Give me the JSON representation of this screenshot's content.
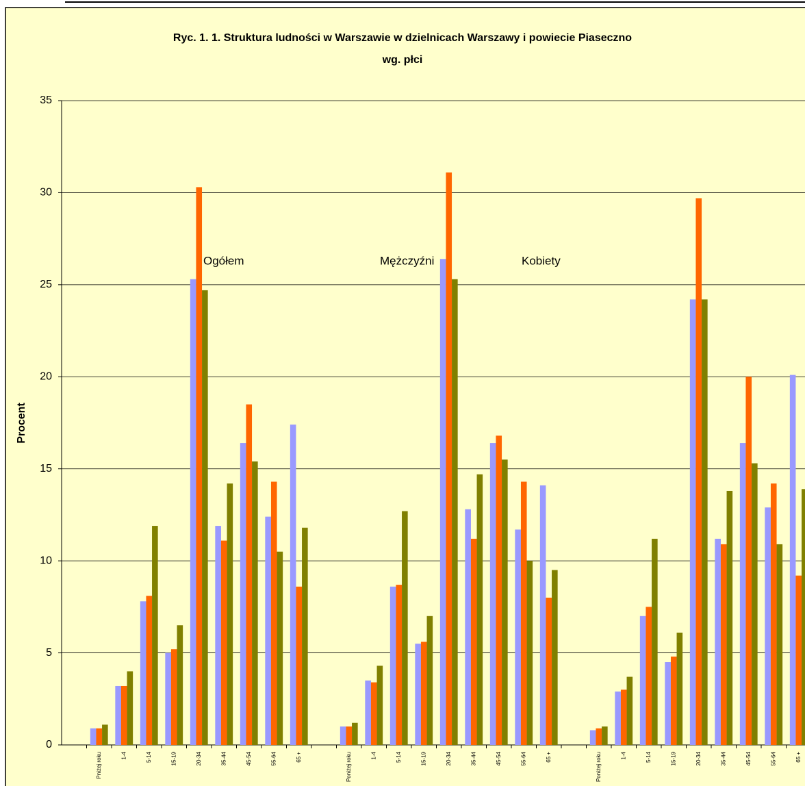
{
  "chart_data": {
    "type": "bar",
    "title": [
      "Ryc. 1. 1. Struktura ludności w Warszawie w dzielnicach Warszawy i powiecie Piaseczno",
      "wg. płci"
    ],
    "y_label": "Procent",
    "annotations": [
      "Ogółem",
      "Mężczyźni",
      "Kobiety"
    ],
    "categories": [
      null,
      "Pniżej roku",
      "1-4",
      "5-14",
      "15-19",
      "20-34",
      "35-44",
      "45-54",
      "55-64",
      "65 +",
      null,
      "Poniżej roku",
      "1-4",
      "5-14",
      "15-19",
      "20-34",
      "35-44",
      "45-54",
      "55-64",
      "65 +",
      null,
      "Poniżej roku",
      "1-4",
      "5-14",
      "15-19",
      "20-34",
      "35-44",
      "45-54",
      "55-64",
      "65 +"
    ],
    "series": [
      {
        "color": "#9999ff",
        "values": [
          null,
          0.9,
          3.2,
          7.8,
          5.0,
          25.3,
          11.9,
          16.4,
          12.4,
          17.4,
          null,
          1.0,
          3.5,
          8.6,
          5.5,
          26.4,
          12.8,
          16.4,
          11.7,
          14.1,
          null,
          0.8,
          2.9,
          7.0,
          4.5,
          24.2,
          11.2,
          16.4,
          12.9,
          20.1
        ]
      },
      {
        "color": "#ff6600",
        "values": [
          null,
          0.9,
          3.2,
          8.1,
          5.2,
          30.3,
          11.1,
          18.5,
          14.3,
          8.6,
          null,
          1.0,
          3.4,
          8.7,
          5.6,
          31.1,
          11.2,
          16.8,
          14.3,
          8.0,
          null,
          0.9,
          3.0,
          7.5,
          4.8,
          29.7,
          10.9,
          20.0,
          14.2,
          9.2
        ]
      },
      {
        "color": "#808000",
        "values": [
          null,
          1.1,
          4.0,
          11.9,
          6.5,
          24.7,
          14.2,
          15.4,
          10.5,
          11.8,
          null,
          1.2,
          4.3,
          12.7,
          7.0,
          25.3,
          14.7,
          15.5,
          10.0,
          9.5,
          null,
          1.0,
          3.7,
          11.2,
          6.1,
          24.2,
          13.8,
          15.3,
          10.9,
          13.9
        ]
      }
    ],
    "ylim": [
      0,
      35
    ],
    "yticks": [
      0,
      5,
      10,
      15,
      20,
      25,
      30,
      35
    ],
    "grid": true
  }
}
